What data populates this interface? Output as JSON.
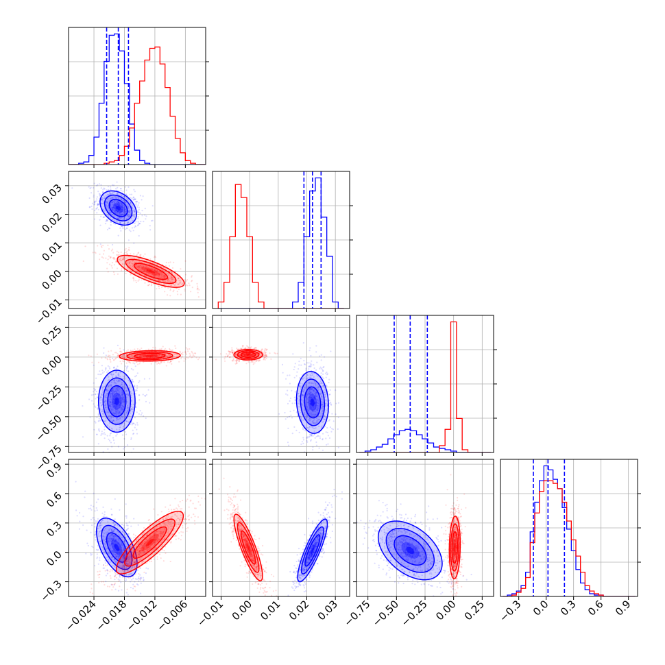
{
  "chart_data": {
    "type": "corner",
    "n_params": 4,
    "series": [
      {
        "name": "",
        "color": "#0000ff"
      },
      {
        "name": "",
        "color": "#ff0000"
      }
    ],
    "grid": true,
    "panels": [
      {
        "id": "hist-0",
        "kind": "hist",
        "col": 0,
        "row": 0,
        "xlim": [
          -0.029,
          -0.002
        ],
        "bins": [
          -0.0285,
          -0.0275,
          -0.0265,
          -0.0255,
          -0.0245,
          -0.0235,
          -0.0225,
          -0.0215,
          -0.0205,
          -0.0195,
          -0.0185,
          -0.0175,
          -0.0165,
          -0.0155,
          -0.0145,
          -0.0135,
          -0.0125,
          -0.0115,
          -0.0105,
          -0.0095,
          -0.0085,
          -0.0075,
          -0.0065,
          -0.0055,
          -0.0045,
          -0.0035,
          -0.0025
        ],
        "counts": {
          "blue": [
            0,
            0,
            0.01,
            0.02,
            0.07,
            0.21,
            0.47,
            0.79,
            0.99,
            1.0,
            0.87,
            0.62,
            0.31,
            0.11,
            0.03,
            0.01,
            0,
            0,
            0,
            0,
            0,
            0,
            0,
            0,
            0,
            0,
            0
          ],
          "red": [
            0,
            0,
            0,
            0,
            0,
            0,
            0,
            0.01,
            0.02,
            0.03,
            0.07,
            0.14,
            0.28,
            0.47,
            0.64,
            0.8,
            0.89,
            0.9,
            0.77,
            0.59,
            0.37,
            0.2,
            0.09,
            0.03,
            0.01,
            0,
            0
          ]
        },
        "quantiles": [
          -0.0215,
          -0.0192,
          -0.0172
        ]
      },
      {
        "id": "hist-1",
        "kind": "hist",
        "col": 1,
        "row": 1,
        "xlim": [
          -0.013,
          0.035
        ],
        "bins": [
          -0.01,
          -0.008,
          -0.006,
          -0.004,
          -0.002,
          0.0,
          0.002,
          0.004,
          0.006,
          0.008,
          0.01,
          0.012,
          0.014,
          0.016,
          0.018,
          0.02,
          0.022,
          0.024,
          0.026,
          0.028,
          0.03,
          0.032
        ],
        "counts": {
          "blue": [
            0,
            0,
            0,
            0,
            0,
            0,
            0,
            0,
            0,
            0,
            0,
            0,
            0,
            0.05,
            0.2,
            0.55,
            0.9,
            1.0,
            0.7,
            0.4,
            0.05,
            0
          ],
          "red": [
            0.05,
            0.2,
            0.55,
            0.95,
            0.85,
            0.55,
            0.2,
            0.05,
            0,
            0,
            0,
            0,
            0,
            0,
            0,
            0,
            0,
            0,
            0,
            0,
            0,
            0
          ]
        },
        "quantiles": [
          0.019,
          0.022,
          0.025
        ]
      },
      {
        "id": "hist-2",
        "kind": "hist",
        "col": 2,
        "row": 2,
        "xlim": [
          -0.85,
          0.35
        ],
        "bins": [
          -0.8,
          -0.75,
          -0.7,
          -0.65,
          -0.6,
          -0.55,
          -0.5,
          -0.45,
          -0.4,
          -0.35,
          -0.3,
          -0.25,
          -0.2,
          -0.15,
          -0.1,
          -0.05,
          0.0,
          0.05,
          0.1,
          0.15,
          0.2,
          0.25,
          0.3
        ],
        "counts": {
          "blue": [
            0,
            0.01,
            0.02,
            0.04,
            0.06,
            0.1,
            0.13,
            0.16,
            0.17,
            0.16,
            0.13,
            0.1,
            0.07,
            0.04,
            0.03,
            0.02,
            0.01,
            0,
            0,
            0,
            0,
            0,
            0
          ],
          "red": [
            0,
            0,
            0,
            0,
            0,
            0,
            0,
            0,
            0,
            0,
            0,
            0,
            0,
            0,
            0.05,
            0.17,
            0.96,
            0.25,
            0.02,
            0,
            0,
            0,
            0
          ]
        },
        "quantiles": [
          -0.52,
          -0.38,
          -0.23
        ]
      },
      {
        "id": "hist-3",
        "kind": "hist",
        "col": 3,
        "row": 3,
        "xlim": [
          -0.5,
          1.0
        ],
        "bins": [
          -0.45,
          -0.4,
          -0.35,
          -0.3,
          -0.25,
          -0.2,
          -0.15,
          -0.1,
          -0.05,
          0.0,
          0.05,
          0.1,
          0.15,
          0.2,
          0.25,
          0.3,
          0.35,
          0.4,
          0.45,
          0.5,
          0.55,
          0.6,
          0.65,
          0.7,
          0.75,
          0.8,
          0.85,
          0.9,
          0.95
        ],
        "counts": {
          "blue": [
            0,
            0.01,
            0.02,
            0.04,
            0.08,
            0.18,
            0.48,
            0.7,
            0.86,
            0.97,
            0.94,
            0.87,
            0.8,
            0.66,
            0.5,
            0.34,
            0.2,
            0.1,
            0.05,
            0.02,
            0.01,
            0.01,
            0,
            0,
            0,
            0,
            0,
            0,
            0
          ],
          "red": [
            0,
            0,
            0.01,
            0.03,
            0.06,
            0.14,
            0.4,
            0.62,
            0.78,
            0.86,
            0.86,
            0.84,
            0.8,
            0.7,
            0.56,
            0.42,
            0.3,
            0.18,
            0.08,
            0.04,
            0.02,
            0.01,
            0,
            0,
            0,
            0,
            0,
            0,
            0
          ]
        },
        "quantiles": [
          -0.14,
          0.02,
          0.2
        ]
      },
      {
        "id": "kde-1-0",
        "kind": "2d",
        "col": 0,
        "row": 1,
        "xlim": [
          -0.029,
          -0.002
        ],
        "ylim": [
          -0.013,
          0.035
        ],
        "blobs": [
          {
            "series": "blue",
            "cx": -0.0192,
            "cy": 0.0222,
            "sx": 0.0018,
            "sy": 0.003,
            "rho": -0.35,
            "n": 700
          },
          {
            "series": "red",
            "cx": -0.0128,
            "cy": 0.0,
            "sx": 0.0033,
            "sy": 0.0028,
            "rho": -0.75,
            "n": 700
          }
        ]
      },
      {
        "id": "kde-2-0",
        "kind": "2d",
        "col": 0,
        "row": 2,
        "xlim": [
          -0.029,
          -0.002
        ],
        "ylim": [
          -0.8,
          0.35
        ],
        "blobs": [
          {
            "series": "blue",
            "cx": -0.0195,
            "cy": -0.37,
            "sx": 0.0018,
            "sy": 0.13,
            "rho": 0.0,
            "n": 700
          },
          {
            "series": "red",
            "cx": -0.013,
            "cy": 0.01,
            "sx": 0.003,
            "sy": 0.022,
            "rho": 0.1,
            "n": 700
          }
        ]
      },
      {
        "id": "kde-2-1",
        "kind": "2d",
        "col": 1,
        "row": 2,
        "xlim": [
          -0.013,
          0.035
        ],
        "ylim": [
          -0.8,
          0.35
        ],
        "blobs": [
          {
            "series": "blue",
            "cx": 0.022,
            "cy": -0.38,
            "sx": 0.0028,
            "sy": 0.13,
            "rho": -0.1,
            "n": 700
          },
          {
            "series": "red",
            "cx": -0.0005,
            "cy": 0.02,
            "sx": 0.0025,
            "sy": 0.022,
            "rho": 0.0,
            "n": 700
          }
        ]
      },
      {
        "id": "kde-3-0",
        "kind": "2d",
        "col": 0,
        "row": 3,
        "xlim": [
          -0.029,
          -0.002
        ],
        "ylim": [
          -0.45,
          0.95
        ],
        "blobs": [
          {
            "series": "blue",
            "cx": -0.0195,
            "cy": 0.05,
            "sx": 0.002,
            "sy": 0.15,
            "rho": -0.55,
            "n": 700
          },
          {
            "series": "red",
            "cx": -0.013,
            "cy": 0.1,
            "sx": 0.0033,
            "sy": 0.16,
            "rho": 0.85,
            "n": 700
          }
        ]
      },
      {
        "id": "kde-3-1",
        "kind": "2d",
        "col": 1,
        "row": 3,
        "xlim": [
          -0.013,
          0.035
        ],
        "ylim": [
          -0.45,
          0.95
        ],
        "blobs": [
          {
            "series": "blue",
            "cx": 0.022,
            "cy": 0.02,
            "sx": 0.0026,
            "sy": 0.16,
            "rho": 0.85,
            "n": 700
          },
          {
            "series": "red",
            "cx": -0.0005,
            "cy": 0.05,
            "sx": 0.0025,
            "sy": 0.17,
            "rho": -0.85,
            "n": 700
          }
        ]
      },
      {
        "id": "kde-3-2",
        "kind": "2d",
        "col": 2,
        "row": 3,
        "xlim": [
          -0.85,
          0.35
        ],
        "ylim": [
          -0.45,
          0.95
        ],
        "blobs": [
          {
            "series": "blue",
            "cx": -0.38,
            "cy": 0.02,
            "sx": 0.14,
            "sy": 0.15,
            "rho": -0.45,
            "n": 700
          },
          {
            "series": "red",
            "cx": 0.01,
            "cy": 0.05,
            "sx": 0.024,
            "sy": 0.16,
            "rho": 0.1,
            "n": 700
          }
        ]
      }
    ],
    "axes": {
      "x": [
        {
          "col": 0,
          "ticks": [
            -0.024,
            -0.018,
            -0.012,
            -0.006
          ],
          "labels": [
            "−0.024",
            "−0.018",
            "−0.012",
            "−0.006"
          ]
        },
        {
          "col": 1,
          "ticks": [
            -0.01,
            0.0,
            0.01,
            0.02,
            0.03
          ],
          "labels": [
            "−0.01",
            "0.00",
            "0.01",
            "0.02",
            "0.03"
          ]
        },
        {
          "col": 2,
          "ticks": [
            -0.75,
            -0.5,
            -0.25,
            0.0,
            0.25
          ],
          "labels": [
            "−0.75",
            "−0.50",
            "−0.25",
            "0.00",
            "0.25"
          ]
        },
        {
          "col": 3,
          "ticks": [
            -0.3,
            0.0,
            0.3,
            0.6,
            0.9
          ],
          "labels": [
            "−0.3",
            "0.0",
            "0.3",
            "0.6",
            "0.9"
          ]
        }
      ],
      "y": [
        {
          "row": 1,
          "ticks": [
            -0.01,
            0.0,
            0.01,
            0.02,
            0.03
          ],
          "labels": [
            "−0.01",
            "0.00",
            "0.01",
            "0.02",
            "0.03"
          ]
        },
        {
          "row": 2,
          "ticks": [
            -0.75,
            -0.5,
            -0.25,
            0.0,
            0.25
          ],
          "labels": [
            "−0.75",
            "−0.50",
            "−0.25",
            "0.00",
            "0.25"
          ]
        },
        {
          "row": 3,
          "ticks": [
            -0.3,
            0.0,
            0.3,
            0.6,
            0.9
          ],
          "labels": [
            "−0.3",
            "0.0",
            "0.3",
            "0.6",
            "0.9"
          ]
        }
      ]
    }
  }
}
